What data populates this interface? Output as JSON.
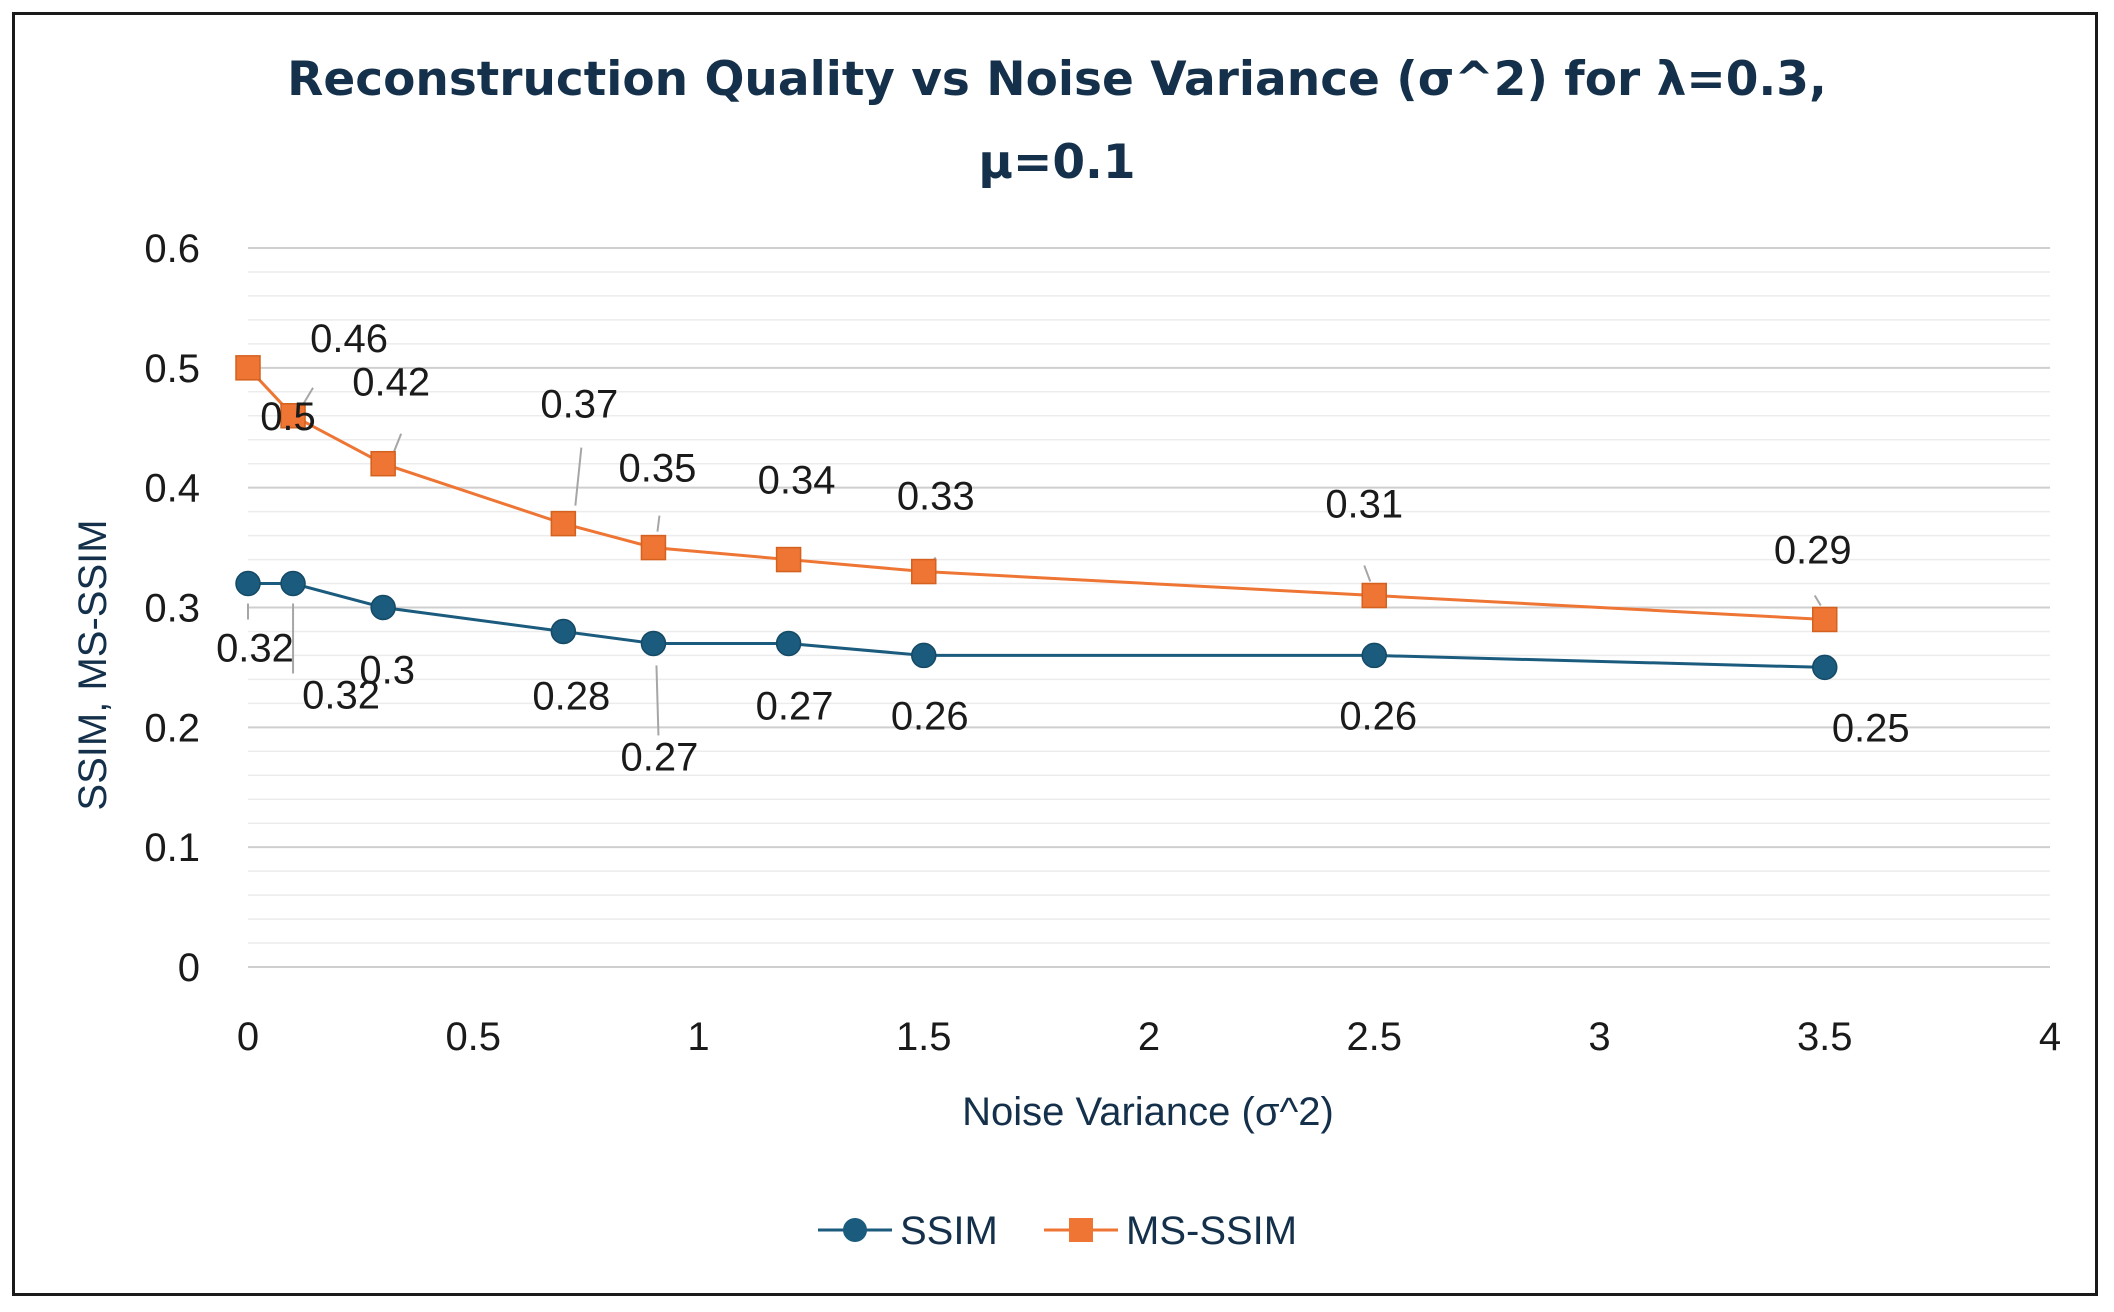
{
  "chart_data": {
    "type": "line",
    "title_line1": "Reconstruction Quality vs Noise Variance (σ^2) for λ=0.3,",
    "title_line2": "μ=0.1",
    "xlabel": "Noise Variance (σ^2)",
    "ylabel": "SSIM, MS-SSIM",
    "xlim": [
      0,
      4
    ],
    "ylim": [
      0,
      0.6
    ],
    "x_ticks": [
      0,
      0.5,
      1,
      1.5,
      2,
      2.5,
      3,
      3.5,
      4
    ],
    "x_tick_labels": [
      "0",
      "0.5",
      "1",
      "1.5",
      "2",
      "2.5",
      "3",
      "3.5",
      "4"
    ],
    "y_ticks": [
      0,
      0.1,
      0.2,
      0.3,
      0.4,
      0.5,
      0.6
    ],
    "y_tick_labels": [
      "0",
      "0.1",
      "0.2",
      "0.3",
      "0.4",
      "0.5",
      "0.6"
    ],
    "major_grid_step": 0.1,
    "minor_grid_step": 0.02,
    "legend_position": "bottom",
    "series": [
      {
        "name": "SSIM",
        "marker": "circle",
        "color": "#1b5b7d",
        "x": [
          0,
          0.1,
          0.3,
          0.7,
          0.9,
          1.2,
          1.5,
          2.5,
          3.5
        ],
        "values": [
          0.32,
          0.32,
          0.3,
          0.28,
          0.27,
          0.27,
          0.26,
          0.26,
          0.25
        ],
        "labels": [
          "0.32",
          "0.32",
          "0.3",
          "0.28",
          "0.27",
          "0.27",
          "0.26",
          "0.26",
          "0.25"
        ]
      },
      {
        "name": "MS-SSIM",
        "marker": "square",
        "color": "#ee7534",
        "x": [
          0,
          0.1,
          0.3,
          0.7,
          0.9,
          1.2,
          1.5,
          2.5,
          3.5
        ],
        "values": [
          0.5,
          0.46,
          0.42,
          0.37,
          0.35,
          0.34,
          0.33,
          0.31,
          0.29
        ],
        "labels": [
          "0.5",
          "0.46",
          "0.42",
          "0.37",
          "0.35",
          "0.34",
          "0.33",
          "0.31",
          "0.29"
        ]
      }
    ]
  }
}
